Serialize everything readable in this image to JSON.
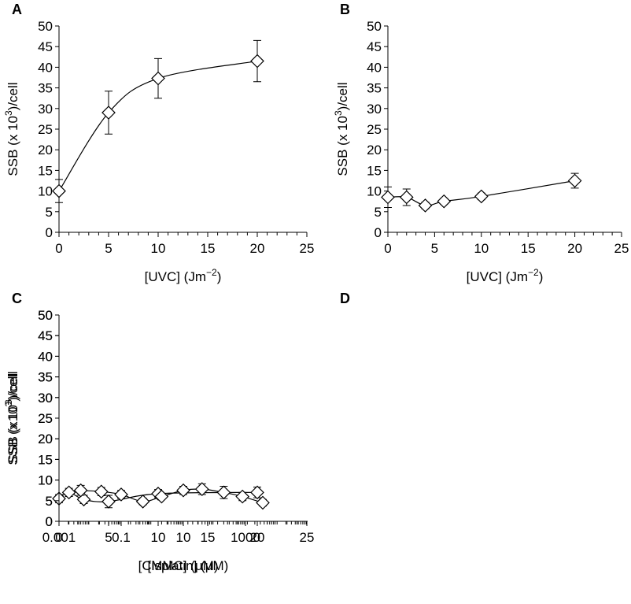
{
  "chart_data": [
    {
      "type": "scatter",
      "panel_label": "A",
      "ylabel": [
        "SSB (x 10",
        "3",
        ")/cell"
      ],
      "xlabel": [
        "[UVC] (Jm",
        "−2",
        ")"
      ],
      "x": [
        0,
        5,
        10,
        20
      ],
      "values": [
        10,
        29,
        37.3,
        41.5
      ],
      "errors": [
        2.8,
        5.2,
        4.8,
        5
      ],
      "xlim": [
        0,
        25
      ],
      "xticks": [
        0,
        5,
        10,
        15,
        20,
        25
      ],
      "ylim": [
        0,
        50
      ],
      "yticks": [
        0,
        5,
        10,
        15,
        20,
        25,
        30,
        35,
        40,
        45,
        50
      ],
      "color": "#000000"
    },
    {
      "type": "scatter",
      "panel_label": "B",
      "ylabel": [
        "SSB (x 10",
        "3",
        ")/cell"
      ],
      "xlabel": [
        "[UVC] (Jm",
        "−2",
        ")"
      ],
      "x": [
        0,
        2,
        4,
        6,
        10,
        20
      ],
      "values": [
        8.5,
        8.5,
        6.5,
        7.5,
        8.7,
        12.5
      ],
      "errors": [
        2.5,
        2,
        0.8,
        0.7,
        0.8,
        1.8
      ],
      "xlim": [
        0,
        25
      ],
      "xticks": [
        0,
        5,
        10,
        15,
        20,
        25
      ],
      "ylim": [
        0,
        50
      ],
      "yticks": [
        0,
        5,
        10,
        15,
        20,
        25,
        30,
        35,
        40,
        45,
        50
      ],
      "color": "#000000"
    },
    {
      "type": "scatter",
      "panel_label": "C",
      "ylabel": [
        "SSB (x 10",
        "3",
        ")/cell"
      ],
      "xlabel": [
        "[MMC] (μM)"
      ],
      "x": [
        0,
        1,
        2.5,
        5,
        10,
        20
      ],
      "values": [
        5.5,
        7,
        5.3,
        4.8,
        6.7,
        7
      ],
      "errors": [
        1,
        1,
        1,
        1.5,
        1,
        1.3
      ],
      "xlim": [
        0,
        25
      ],
      "xticks": [
        0,
        5,
        10,
        15,
        20,
        25
      ],
      "ylim": [
        0,
        50
      ],
      "yticks": [
        0,
        5,
        10,
        15,
        20,
        25,
        30,
        35,
        40,
        45,
        50
      ],
      "color": "#000000"
    },
    {
      "type": "scatter",
      "panel_label": "D",
      "ylabel": [
        "SSB (x10",
        "3",
        ")/cell"
      ],
      "xlabel": [
        "[Cisplatin] (μM)"
      ],
      "x": [
        0.005,
        0.023,
        0.1,
        0.5,
        2,
        10,
        40,
        200,
        800,
        3600
      ],
      "values": [
        7.5,
        7.2,
        6.5,
        4.8,
        6,
        7.5,
        7.8,
        7,
        6,
        4.5
      ],
      "errors": [
        1.2,
        1,
        1,
        0.8,
        0.5,
        1,
        1.3,
        1.5,
        1,
        0.8
      ],
      "xscale": "log",
      "xlim": [
        0.001,
        100000
      ],
      "xticks": [
        0.001,
        0.1,
        10,
        1000
      ],
      "ylim": [
        0,
        50
      ],
      "yticks": [
        0,
        5,
        10,
        15,
        20,
        25,
        30,
        35,
        40,
        45,
        50
      ],
      "color": "#000000"
    }
  ]
}
